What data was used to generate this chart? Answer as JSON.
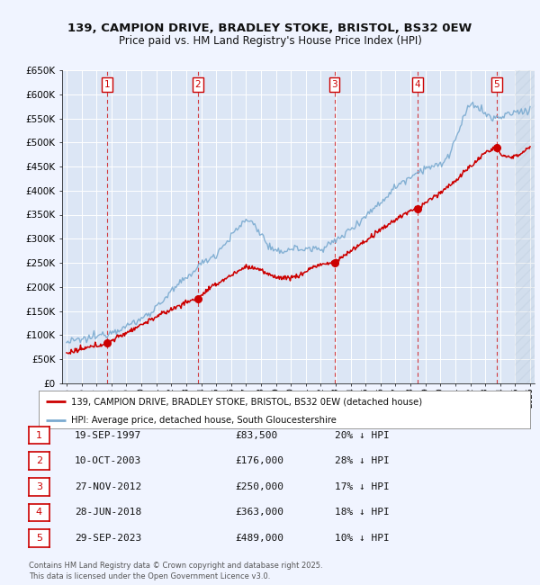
{
  "title": "139, CAMPION DRIVE, BRADLEY STOKE, BRISTOL, BS32 0EW",
  "subtitle": "Price paid vs. HM Land Registry's House Price Index (HPI)",
  "ylim": [
    0,
    650000
  ],
  "yticks": [
    0,
    50000,
    100000,
    150000,
    200000,
    250000,
    300000,
    350000,
    400000,
    450000,
    500000,
    550000,
    600000,
    650000
  ],
  "ytick_labels": [
    "£0",
    "£50K",
    "£100K",
    "£150K",
    "£200K",
    "£250K",
    "£300K",
    "£350K",
    "£400K",
    "£450K",
    "£500K",
    "£550K",
    "£600K",
    "£650K"
  ],
  "xlim_start": 1994.7,
  "xlim_end": 2026.3,
  "hatch_start": 2025.0,
  "sale_points": [
    {
      "num": 1,
      "year": 1997.72,
      "price": 83500
    },
    {
      "num": 2,
      "year": 2003.78,
      "price": 176000
    },
    {
      "num": 3,
      "year": 2012.91,
      "price": 250000
    },
    {
      "num": 4,
      "year": 2018.49,
      "price": 363000
    },
    {
      "num": 5,
      "year": 2023.75,
      "price": 489000
    }
  ],
  "table_rows": [
    {
      "num": "1",
      "date": "19-SEP-1997",
      "price": "£83,500",
      "note": "20% ↓ HPI"
    },
    {
      "num": "2",
      "date": "10-OCT-2003",
      "price": "£176,000",
      "note": "28% ↓ HPI"
    },
    {
      "num": "3",
      "date": "27-NOV-2012",
      "price": "£250,000",
      "note": "17% ↓ HPI"
    },
    {
      "num": "4",
      "date": "28-JUN-2018",
      "price": "£363,000",
      "note": "18% ↓ HPI"
    },
    {
      "num": "5",
      "date": "29-SEP-2023",
      "price": "£489,000",
      "note": "10% ↓ HPI"
    }
  ],
  "legend_line1": "139, CAMPION DRIVE, BRADLEY STOKE, BRISTOL, BS32 0EW (detached house)",
  "legend_line2": "HPI: Average price, detached house, South Gloucestershire",
  "footer": "Contains HM Land Registry data © Crown copyright and database right 2025.\nThis data is licensed under the Open Government Licence v3.0.",
  "bg_color": "#f0f4ff",
  "plot_bg_color": "#dce6f5",
  "grid_color": "#ffffff",
  "red_color": "#cc0000",
  "blue_color": "#7aaad0"
}
